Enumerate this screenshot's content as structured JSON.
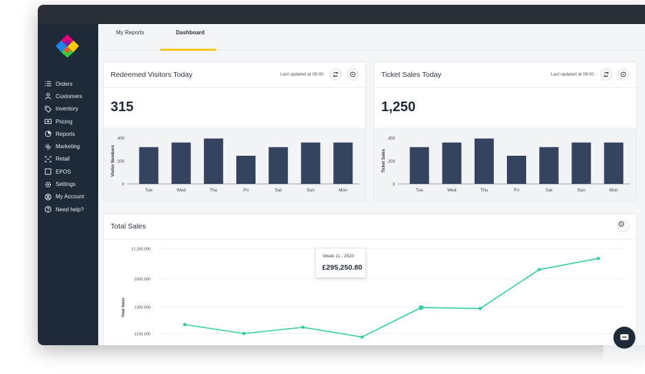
{
  "window": {
    "dots": [
      "#e6007e",
      "#ffcc00",
      "#2ecc40"
    ]
  },
  "sidebar": {
    "items": [
      {
        "label": "Orders",
        "icon": "list-icon"
      },
      {
        "label": "Customers",
        "icon": "user-icon"
      },
      {
        "label": "Inventory",
        "icon": "tag-icon"
      },
      {
        "label": "Pricing",
        "icon": "money-icon"
      },
      {
        "label": "Reports",
        "icon": "pie-chart-icon"
      },
      {
        "label": "Marketing",
        "icon": "sparkle-icon"
      },
      {
        "label": "Retail",
        "icon": "scan-icon"
      },
      {
        "label": "EPOS",
        "icon": "square-icon"
      },
      {
        "label": "Settings",
        "icon": "gear-icon"
      },
      {
        "label": "My Account",
        "icon": "account-icon"
      },
      {
        "label": "Need help?",
        "icon": "help-icon"
      }
    ]
  },
  "tabs": [
    {
      "label": "My Reports",
      "active": false
    },
    {
      "label": "Dashboard",
      "active": true
    }
  ],
  "cards": {
    "visitors": {
      "title": "Redeemed Visitors Today",
      "updated": "Last updated at 09:00",
      "value": "315"
    },
    "tickets": {
      "title": "Ticket Sales Today",
      "updated": "Last updated at 09:00",
      "value": "1,250"
    },
    "total": {
      "title": "Total Sales"
    }
  },
  "tooltip": {
    "label": "Week 11 - 2020",
    "value": "£295,250.80"
  },
  "colors": {
    "sidebar": "#1f2a38",
    "bar": "#34435e",
    "line": "#2ed197",
    "accent": "#f5c518"
  },
  "chart_data": [
    {
      "type": "bar",
      "categories": [
        "Tue",
        "Wed",
        "Thu",
        "Fri",
        "Sat",
        "Sun",
        "Mon"
      ],
      "values": [
        320,
        360,
        395,
        245,
        320,
        360,
        360
      ],
      "ylabel": "Visitor Numbers",
      "yticks": [
        "0",
        "200",
        "400"
      ],
      "ylim": [
        0,
        400
      ]
    },
    {
      "type": "bar",
      "categories": [
        "Tue",
        "Wed",
        "Thu",
        "Fri",
        "Sat",
        "Sun",
        "Mon"
      ],
      "values": [
        320,
        360,
        395,
        245,
        320,
        360,
        360
      ],
      "ylabel": "Ticket Sales",
      "yticks": [
        "0",
        "200",
        "400"
      ],
      "ylim": [
        0,
        400
      ]
    },
    {
      "type": "line",
      "ylabel": "Total Sales",
      "yticks": [
        "£1,200,000",
        "£600,000",
        "£300,000",
        "£150,000"
      ],
      "values": [
        200000,
        150000,
        185000,
        130000,
        295250.8,
        290000,
        780000,
        1000000
      ],
      "highlight_index": 4
    }
  ]
}
